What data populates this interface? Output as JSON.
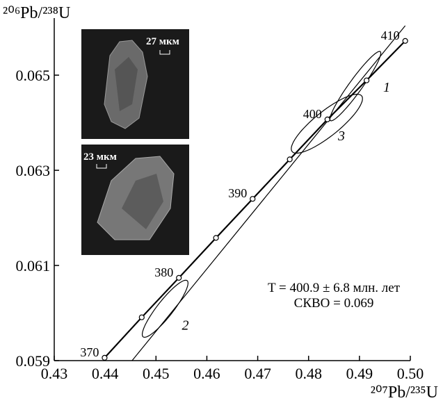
{
  "chart_data": {
    "type": "concordia",
    "xlabel": "²⁰⁷Pb/²³⁵U",
    "ylabel": "²⁰⁶Pb/²³⁸U",
    "xlim": [
      0.43,
      0.5
    ],
    "ylim": [
      0.059,
      0.0662
    ],
    "xticks": [
      0.43,
      0.44,
      0.45,
      0.46,
      0.47,
      0.48,
      0.49,
      {
        "value": 0.5,
        "label": "0.50"
      }
    ],
    "yticks": [
      {
        "value": 0.059,
        "label": "0.059"
      },
      {
        "value": 0.061,
        "label": "0.061"
      },
      {
        "value": 0.063,
        "label": "0.063"
      },
      {
        "value": 0.065,
        "label": "0.065"
      }
    ],
    "concordia": {
      "ages": [
        370,
        null,
        380,
        null,
        390,
        null,
        400,
        null,
        410
      ],
      "x": [
        0.4399,
        0.4472,
        0.4545,
        0.4618,
        0.469,
        0.4763,
        0.4837,
        0.4914,
        0.499
      ],
      "y": [
        0.05906,
        0.05991,
        0.06074,
        0.06158,
        0.0624,
        0.06323,
        0.06407,
        0.06489,
        0.06572
      ]
    },
    "discordia": {
      "x": [
        0.4453,
        0.499
      ],
      "y": [
        0.059,
        0.06604
      ]
    },
    "ellipses": [
      {
        "label": "1",
        "x": 0.4892,
        "y": 0.06477,
        "sx": 0.005,
        "sy": 0.00073,
        "rho": 0.95
      },
      {
        "label": "2",
        "x": 0.4518,
        "y": 0.06009,
        "sx": 0.0045,
        "sy": 0.0006,
        "rho": 0.9
      },
      {
        "label": "3",
        "x": 0.4836,
        "y": 0.06398,
        "sx": 0.007,
        "sy": 0.00062,
        "rho": 0.85
      }
    ],
    "annotations": [
      "T = 400.9 ± 6.8 млн. лет",
      "СКВО = 0.069"
    ],
    "insets": [
      "27 мкм",
      "23 мкм"
    ]
  }
}
